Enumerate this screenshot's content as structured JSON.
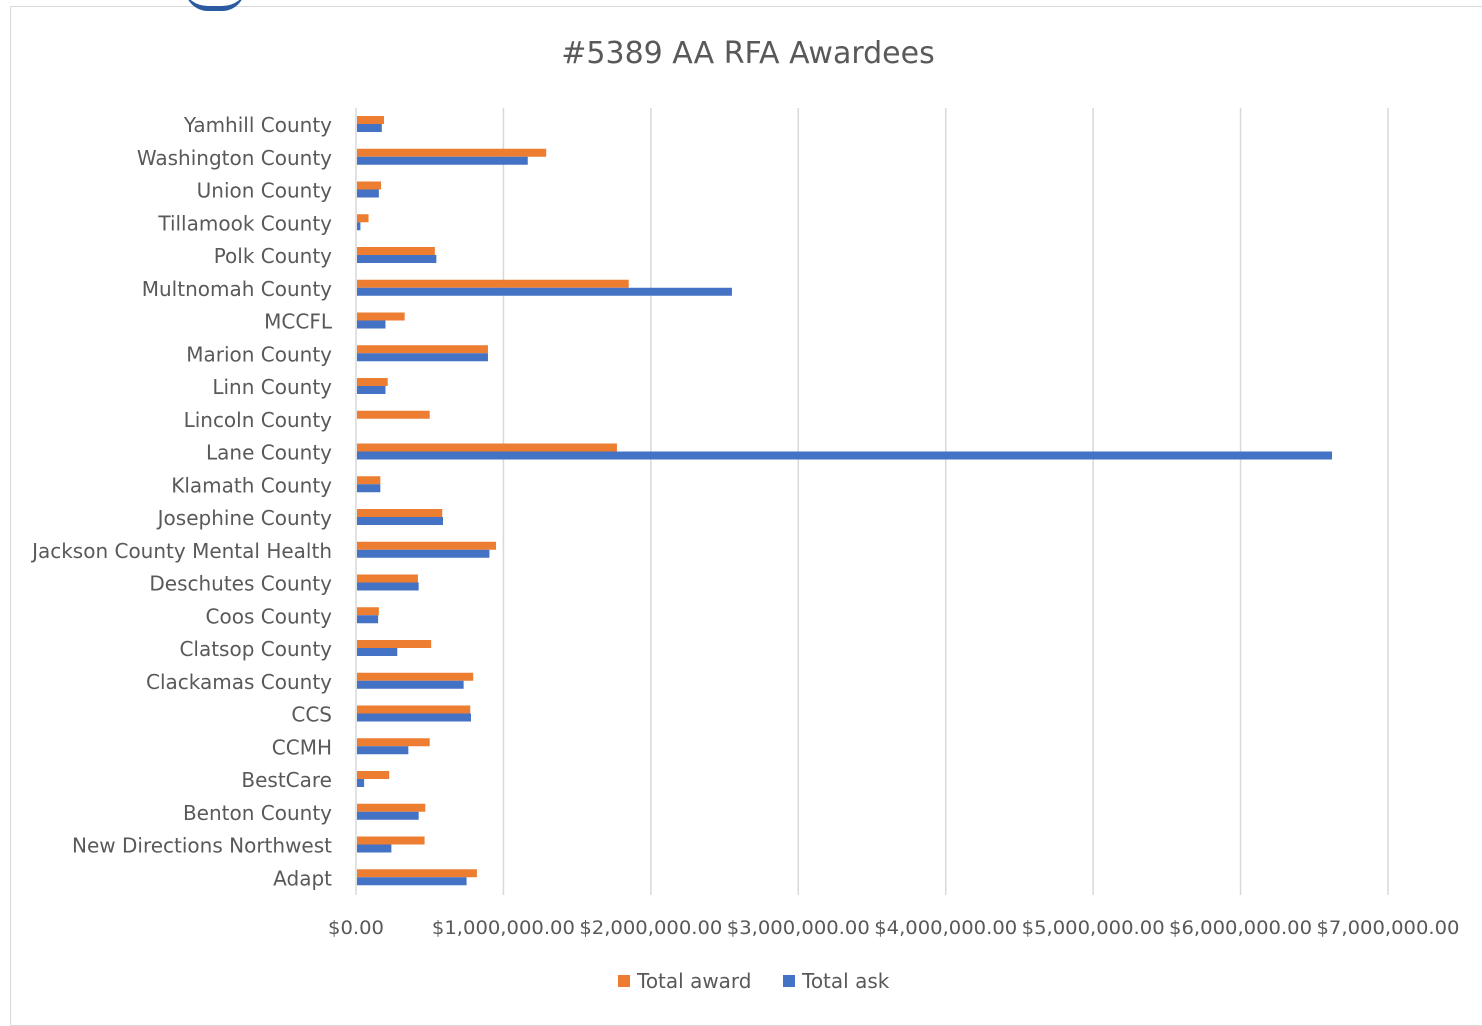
{
  "chart_data": {
    "type": "bar",
    "orientation": "horizontal",
    "title": "#5389 AA RFA Awardees",
    "xlabel": "",
    "ylabel": "",
    "xlim": [
      0,
      7000000
    ],
    "x_ticks": [
      0,
      1000000,
      2000000,
      3000000,
      4000000,
      5000000,
      6000000,
      7000000
    ],
    "x_tick_labels": [
      "$0.00",
      "$1,000,000.00",
      "$2,000,000.00",
      "$3,000,000.00",
      "$4,000,000.00",
      "$5,000,000.00",
      "$6,000,000.00",
      "$7,000,000.00"
    ],
    "grid": "vertical",
    "legend": "bottom",
    "categories": [
      "Yamhill County",
      "Washington County",
      "Union County",
      "Tillamook County",
      "Polk County",
      "Multnomah County",
      "MCCFL",
      "Marion County",
      "Linn County",
      "Lincoln County",
      "Lane County",
      "Klamath County",
      "Josephine County",
      "Jackson County Mental Health",
      "Deschutes County",
      "Coos County",
      "Clatsop County",
      "Clackamas County",
      "CCS",
      "CCMH",
      "BestCare",
      "Benton County",
      "New Directions Northwest",
      "Adapt"
    ],
    "series": [
      {
        "name": "Total award",
        "color": "#ed7d31",
        "values": [
          190000,
          1290000,
          170000,
          85000,
          535000,
          1850000,
          330000,
          895000,
          215000,
          500000,
          1770000,
          165000,
          585000,
          950000,
          420000,
          155000,
          510000,
          795000,
          775000,
          500000,
          225000,
          470000,
          465000,
          820000
        ]
      },
      {
        "name": "Total ask",
        "color": "#4472c4",
        "values": [
          175000,
          1165000,
          155000,
          30000,
          545000,
          2550000,
          200000,
          895000,
          200000,
          0,
          6620000,
          165000,
          590000,
          905000,
          425000,
          150000,
          280000,
          730000,
          780000,
          355000,
          55000,
          425000,
          240000,
          750000
        ]
      }
    ]
  }
}
